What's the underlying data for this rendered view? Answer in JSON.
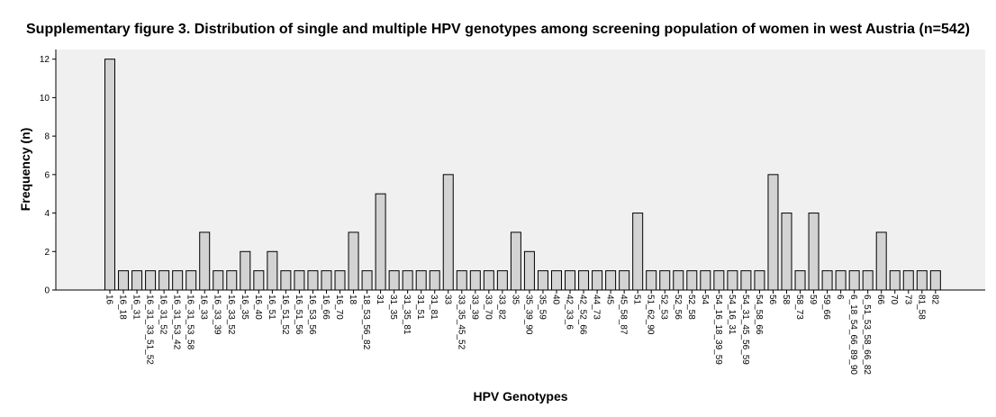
{
  "chart_data": {
    "type": "bar",
    "title": "Supplementary figure 3. Distribution of single and multiple HPV genotypes among screening population of women in west Austria (n=542)",
    "xlabel": "HPV Genotypes",
    "ylabel": "Frequency (n)",
    "ylim": [
      0,
      12.5
    ],
    "yticks": [
      0,
      2,
      4,
      6,
      8,
      10,
      12
    ],
    "grid": false,
    "colors": {
      "bar_fill": "#d3d3d3",
      "bar_stroke": "#000000",
      "plot_bg": "#f0f0f0"
    },
    "categories": [
      "16",
      "16_18",
      "16_31",
      "16_31_33_51_52",
      "16_31_52",
      "16_31_53_42",
      "16_31_53_58",
      "16_33",
      "16_33_39",
      "16_33_52",
      "16_35",
      "16_40",
      "16_51",
      "16_51_52",
      "16_51_56",
      "16_53_56",
      "16_66",
      "16_70",
      "18",
      "18_53_56_82",
      "31",
      "31_35",
      "31_35_81",
      "31_51",
      "31_81",
      "33",
      "33_35_45_52",
      "33_39",
      "33_70",
      "33_82",
      "35",
      "35_39_90",
      "35_59",
      "40",
      "42_33_6",
      "42_52_66",
      "44_73",
      "45",
      "45_58_87",
      "51",
      "51_62_90",
      "52_53",
      "52_56",
      "52_58",
      "54",
      "54_16_18_39_59",
      "54_16_31",
      "54_31_45_56_59",
      "54_58_66",
      "56",
      "58",
      "58_73",
      "59",
      "59_66",
      "6",
      "6_18_54_66_89_90",
      "6_51_53_58_66_82",
      "66",
      "70",
      "73",
      "81_58",
      "82"
    ],
    "values": [
      12,
      1,
      1,
      1,
      1,
      1,
      1,
      3,
      1,
      1,
      2,
      1,
      2,
      1,
      1,
      1,
      1,
      1,
      3,
      1,
      5,
      1,
      1,
      1,
      1,
      6,
      1,
      1,
      1,
      1,
      3,
      2,
      1,
      1,
      1,
      1,
      1,
      1,
      1,
      4,
      1,
      1,
      1,
      1,
      1,
      1,
      1,
      1,
      1,
      6,
      4,
      1,
      4,
      1,
      1,
      1,
      1,
      3,
      1,
      1,
      1,
      1
    ]
  }
}
